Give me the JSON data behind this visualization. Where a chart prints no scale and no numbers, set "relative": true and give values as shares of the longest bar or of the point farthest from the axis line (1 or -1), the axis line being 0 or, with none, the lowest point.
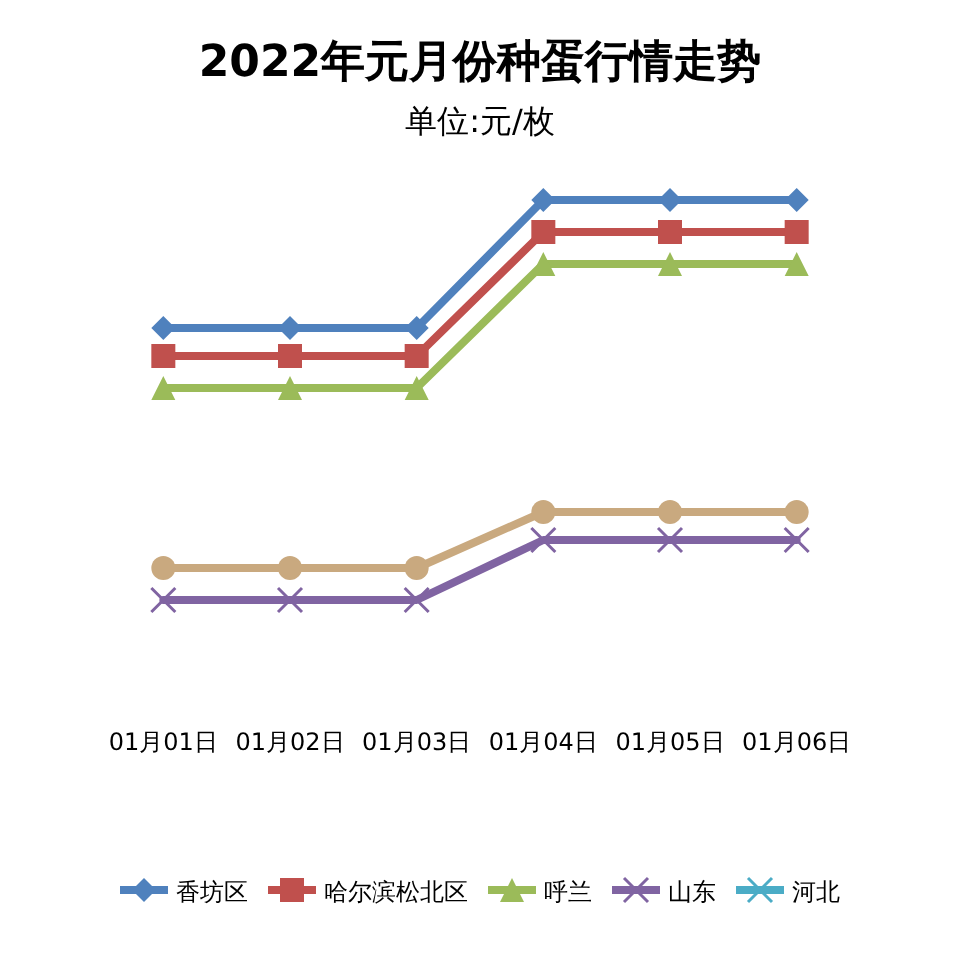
{
  "chart_data": {
    "type": "line",
    "title": "2022年元月份种蛋行情走势",
    "subtitle": "单位:元/枚",
    "relative": true,
    "categories": [
      "01月01日",
      "01月02日",
      "01月03日",
      "01月04日",
      "01月05日",
      "01月06日"
    ],
    "series": [
      {
        "name": "香坊区",
        "color": "#4f81bd",
        "marker": "diamond",
        "values": [
          0.68,
          0.68,
          0.68,
          1,
          1,
          1
        ]
      },
      {
        "name": "哈尔滨松北区",
        "color": "#c0504d",
        "marker": "square",
        "values": [
          0.61,
          0.61,
          0.61,
          0.92,
          0.92,
          0.92
        ]
      },
      {
        "name": "呼兰",
        "color": "#9bbb59",
        "marker": "triangle",
        "values": [
          0.53,
          0.53,
          0.53,
          0.84,
          0.84,
          0.84
        ]
      },
      {
        "name": "山东",
        "color": "#8064a2",
        "marker": "cross",
        "values": [
          0,
          0,
          0,
          0.15,
          0.15,
          0.15
        ]
      },
      {
        "name": "河北",
        "color": "#4bacc6",
        "marker": "star",
        "values": [
          null,
          null,
          null,
          null,
          null,
          null
        ]
      },
      {
        "color": "#c9a97f",
        "marker": "circle",
        "values": [
          0.08,
          0.08,
          0.08,
          0.22,
          0.22,
          0.22
        ]
      }
    ],
    "legend": "bottom",
    "grid": false
  }
}
